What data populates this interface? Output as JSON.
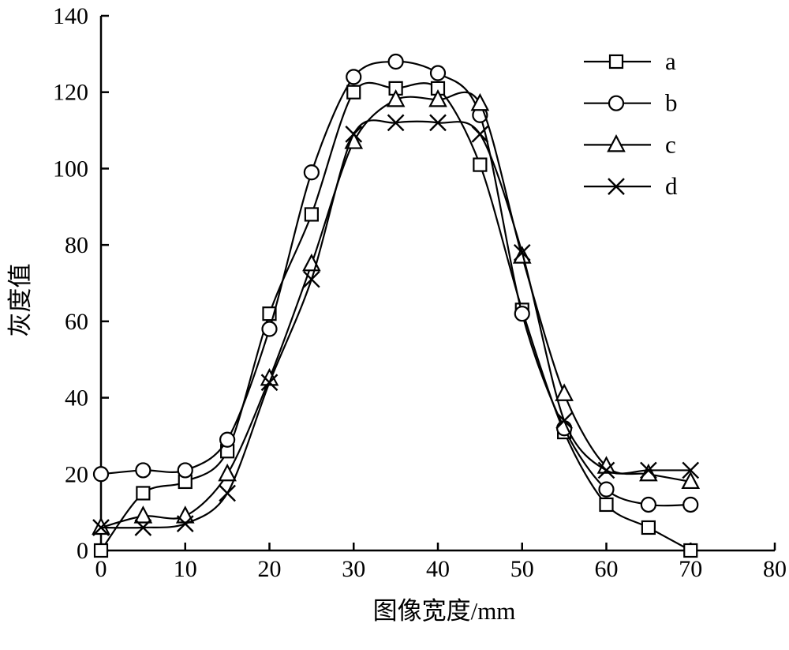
{
  "chart_data": {
    "type": "line",
    "title": "",
    "xlabel": "图像宽度/mm",
    "ylabel": "灰度值",
    "xlim": [
      0,
      80
    ],
    "ylim": [
      0,
      140
    ],
    "xticks": [
      0,
      10,
      20,
      30,
      40,
      50,
      60,
      70,
      80
    ],
    "yticks": [
      0,
      20,
      40,
      60,
      80,
      100,
      120,
      140
    ],
    "grid": false,
    "legend_position": "top-right",
    "line_color": "#000000",
    "x": [
      0,
      5,
      10,
      15,
      20,
      25,
      30,
      35,
      40,
      45,
      50,
      55,
      60,
      65,
      70
    ],
    "series": [
      {
        "name": "a",
        "marker": "square",
        "values": [
          0,
          15,
          18,
          26,
          62,
          88,
          120,
          121,
          121,
          101,
          63,
          31,
          12,
          6,
          0
        ]
      },
      {
        "name": "b",
        "marker": "circle",
        "values": [
          20,
          21,
          21,
          29,
          58,
          99,
          124,
          128,
          125,
          114,
          62,
          32,
          16,
          12,
          12
        ]
      },
      {
        "name": "c",
        "marker": "triangle",
        "values": [
          6,
          9,
          9,
          20,
          45,
          75,
          107,
          118,
          118,
          117,
          77,
          41,
          22,
          20,
          18
        ]
      },
      {
        "name": "d",
        "marker": "cross",
        "values": [
          6,
          6,
          7,
          15,
          44,
          71,
          109,
          112,
          112,
          109,
          78,
          34,
          21,
          21,
          21
        ]
      }
    ]
  }
}
